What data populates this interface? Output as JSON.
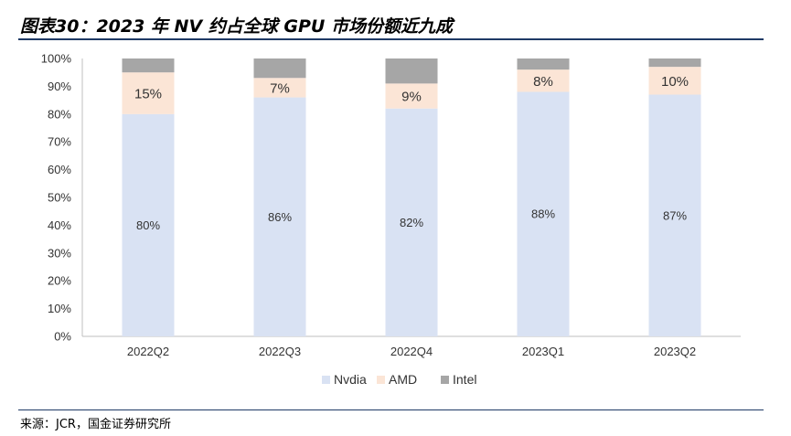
{
  "title": "图表30：2023 年 NV 约占全球 GPU 市场份额近九成",
  "source": "来源：JCR，国金证券研究所",
  "chart_data": {
    "type": "bar",
    "stacked": true,
    "categories": [
      "2022Q2",
      "2022Q3",
      "2022Q4",
      "2023Q1",
      "2023Q2"
    ],
    "series": [
      {
        "name": "Nvdia",
        "color": "#d9e2f3",
        "values": [
          80,
          86,
          82,
          88,
          87
        ],
        "labels": [
          "80%",
          "86%",
          "82%",
          "88%",
          "87%"
        ]
      },
      {
        "name": "AMD",
        "color": "#fbe5d6",
        "values": [
          15,
          7,
          9,
          8,
          10
        ],
        "labels": [
          "15%",
          "7%",
          "9%",
          "8%",
          "10%"
        ]
      },
      {
        "name": "Intel",
        "color": "#a6a6a6",
        "values": [
          5,
          7,
          9,
          4,
          3
        ],
        "labels": []
      }
    ],
    "ylim": [
      0,
      100
    ],
    "y_ticks": [
      "0%",
      "10%",
      "20%",
      "30%",
      "40%",
      "50%",
      "60%",
      "70%",
      "80%",
      "90%",
      "100%"
    ],
    "legend_position": "bottom"
  }
}
